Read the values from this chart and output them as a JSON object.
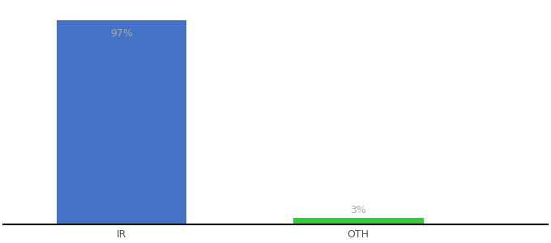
{
  "categories": [
    "IR",
    "OTH"
  ],
  "values": [
    97,
    3
  ],
  "bar_colors": [
    "#4472c4",
    "#33cc33"
  ],
  "label_texts": [
    "97%",
    "3%"
  ],
  "label_color": "#aaaaaa",
  "label_fontsize": 9,
  "ylim": [
    0,
    105
  ],
  "background_color": "#ffffff",
  "axis_linecolor": "#111111",
  "bar_width": 0.55,
  "xlim": [
    -0.5,
    1.8
  ],
  "x_positions": [
    0,
    1
  ],
  "tick_fontsize": 9,
  "tick_color": "#555555"
}
